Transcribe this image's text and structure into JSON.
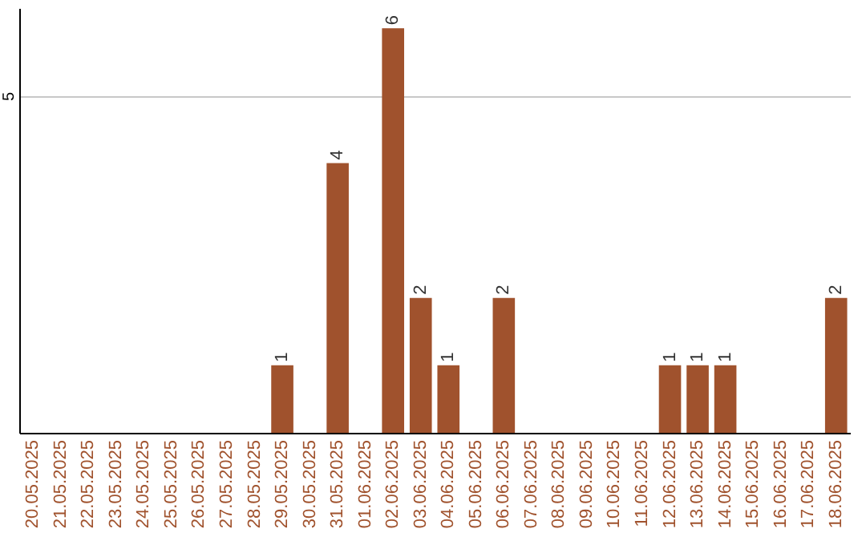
{
  "chart_data": {
    "type": "bar",
    "categories": [
      "20.05.2025",
      "21.05.2025",
      "22.05.2025",
      "23.05.2025",
      "24.05.2025",
      "25.05.2025",
      "26.05.2025",
      "27.05.2025",
      "28.05.2025",
      "29.05.2025",
      "30.05.2025",
      "31.05.2025",
      "01.06.2025",
      "02.06.2025",
      "03.06.2025",
      "04.06.2025",
      "05.06.2025",
      "06.06.2025",
      "07.06.2025",
      "08.06.2025",
      "09.06.2025",
      "10.06.2025",
      "11.06.2025",
      "12.06.2025",
      "13.06.2025",
      "14.06.2025",
      "15.06.2025",
      "16.06.2025",
      "17.06.2025",
      "18.06.2025"
    ],
    "values": [
      0,
      0,
      0,
      0,
      0,
      0,
      0,
      0,
      0,
      1,
      0,
      4,
      0,
      6,
      2,
      1,
      0,
      2,
      0,
      0,
      0,
      0,
      0,
      1,
      1,
      1,
      0,
      0,
      0,
      2
    ],
    "value_labels": [
      null,
      null,
      null,
      null,
      null,
      null,
      null,
      null,
      null,
      "1",
      null,
      "4",
      null,
      "6",
      "2",
      "1",
      null,
      "2",
      null,
      null,
      null,
      null,
      null,
      "1",
      "1",
      "1",
      null,
      null,
      null,
      "2"
    ],
    "color": "#a0522d",
    "ylim": [
      0,
      6.3
    ],
    "yticks": [
      5
    ],
    "grid": "y"
  }
}
